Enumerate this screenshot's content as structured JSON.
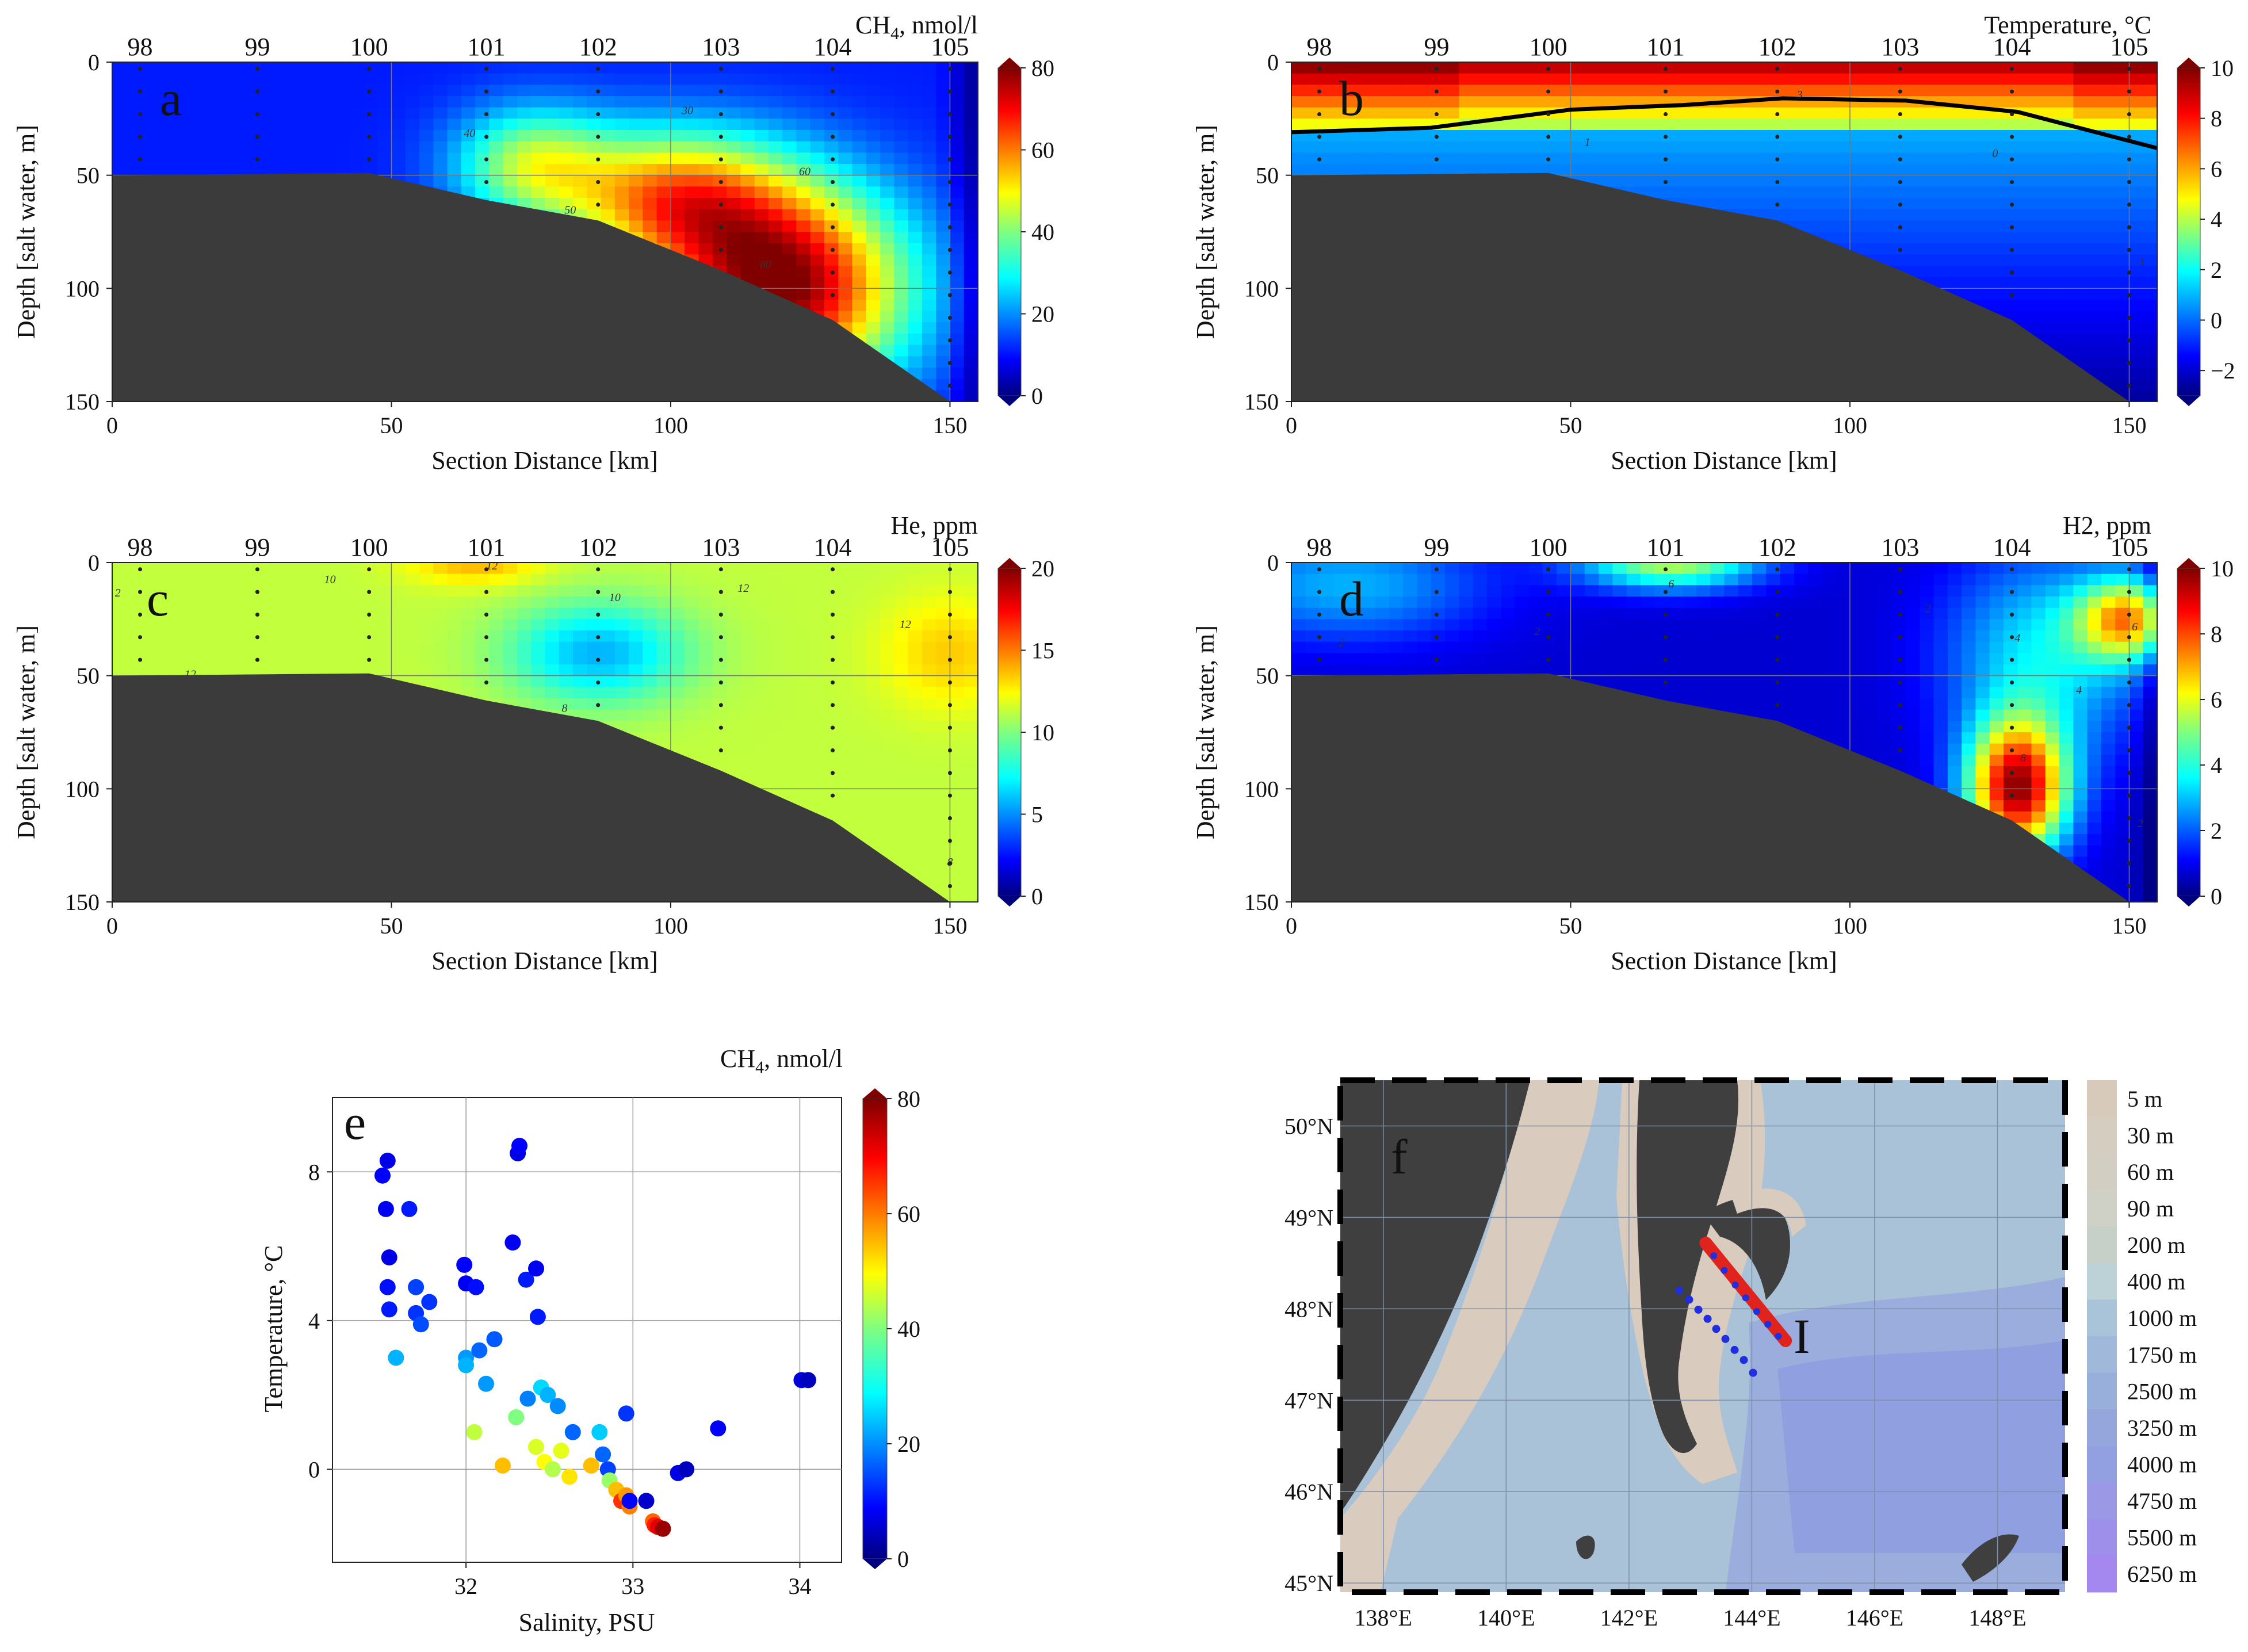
{
  "figure": "Hydrochemical sections and map",
  "colors": {
    "land": "#3f3f3f",
    "seabed": "#3b3b3b",
    "map_water_shallow": "#d9cbbd",
    "map_water_deep": "#8fa6d8",
    "track_red": "#e0231c",
    "track_blue": "#1f2fe0"
  },
  "chart_data": [
    {
      "id": "a",
      "type": "heatmap",
      "panel_label": "a",
      "title": "CH4, nmol/l",
      "title_base": "CH",
      "title_sub": "4",
      "title_rest": ", nmol/l",
      "xlabel": "Section Distance [km]",
      "ylabel": "Depth [salt water, m]",
      "xlim": [
        0,
        155
      ],
      "ylim": [
        150,
        0
      ],
      "x_ticks": [
        0,
        50,
        100,
        150
      ],
      "y_ticks": [
        0,
        50,
        100,
        150
      ],
      "colorbar": {
        "min": 0,
        "max": 80,
        "ticks": [
          0,
          20,
          40,
          60,
          80
        ],
        "colormap": "jet"
      },
      "stations": [
        {
          "name": "98",
          "km": 5
        },
        {
          "name": "99",
          "km": 26
        },
        {
          "name": "100",
          "km": 46
        },
        {
          "name": "101",
          "km": 67
        },
        {
          "name": "102",
          "km": 87
        },
        {
          "name": "103",
          "km": 109
        },
        {
          "name": "104",
          "km": 129
        },
        {
          "name": "105",
          "km": 150
        }
      ],
      "bottom_profile": [
        [
          0,
          50
        ],
        [
          46,
          49
        ],
        [
          67,
          61
        ],
        [
          87,
          70
        ],
        [
          109,
          92
        ],
        [
          129,
          114
        ],
        [
          150,
          150
        ]
      ],
      "sources": [
        {
          "km": 120,
          "depth": 100,
          "value": 80,
          "radius_km": 22,
          "radius_m": 45
        },
        {
          "km": 100,
          "depth": 60,
          "value": 55,
          "radius_km": 20,
          "radius_m": 30
        },
        {
          "km": 75,
          "depth": 45,
          "value": 42,
          "radius_km": 14,
          "radius_m": 25
        }
      ],
      "background": 12,
      "contours": [
        {
          "label": "30",
          "km": 103,
          "depth": 23
        },
        {
          "label": "40",
          "km": 64,
          "depth": 33
        },
        {
          "label": "50",
          "km": 82,
          "depth": 67
        },
        {
          "label": "60",
          "km": 124,
          "depth": 50
        },
        {
          "label": "80",
          "km": 117,
          "depth": 91
        }
      ]
    },
    {
      "id": "b",
      "type": "heatmap",
      "panel_label": "b",
      "title": "Temperature, °C",
      "xlabel": "Section Distance [km]",
      "ylabel": "Depth [salt water, m]",
      "xlim": [
        0,
        155
      ],
      "ylim": [
        150,
        0
      ],
      "x_ticks": [
        0,
        50,
        100,
        150
      ],
      "y_ticks": [
        0,
        50,
        100,
        150
      ],
      "colorbar": {
        "min": -3,
        "max": 10,
        "ticks": [
          -2,
          0,
          2,
          4,
          6,
          8,
          10
        ],
        "colormap": "jet"
      },
      "stations": [
        {
          "name": "98",
          "km": 5
        },
        {
          "name": "99",
          "km": 26
        },
        {
          "name": "100",
          "km": 46
        },
        {
          "name": "101",
          "km": 67
        },
        {
          "name": "102",
          "km": 87
        },
        {
          "name": "103",
          "km": 109
        },
        {
          "name": "104",
          "km": 129
        },
        {
          "name": "105",
          "km": 150
        }
      ],
      "bottom_profile": [
        [
          0,
          50
        ],
        [
          46,
          49
        ],
        [
          67,
          61
        ],
        [
          87,
          70
        ],
        [
          109,
          92
        ],
        [
          129,
          114
        ],
        [
          150,
          150
        ]
      ],
      "thermocline": [
        [
          0,
          31
        ],
        [
          25,
          29
        ],
        [
          50,
          21
        ],
        [
          70,
          19
        ],
        [
          88,
          16
        ],
        [
          110,
          17
        ],
        [
          130,
          22
        ],
        [
          155,
          38
        ]
      ],
      "contours": [
        {
          "label": "3",
          "km": 91,
          "depth": 16
        },
        {
          "label": "1",
          "km": 53,
          "depth": 37
        },
        {
          "label": "0",
          "km": 126,
          "depth": 42
        },
        {
          "label": "-1",
          "km": 152,
          "depth": 90
        }
      ]
    },
    {
      "id": "c",
      "type": "heatmap",
      "panel_label": "c",
      "title": "He, ppm",
      "xlabel": "Section Distance [km]",
      "ylabel": "Depth [salt water, m]",
      "xlim": [
        0,
        155
      ],
      "ylim": [
        150,
        0
      ],
      "x_ticks": [
        0,
        50,
        100,
        150
      ],
      "y_ticks": [
        0,
        50,
        100,
        150
      ],
      "colorbar": {
        "min": 0,
        "max": 20,
        "ticks": [
          0,
          5,
          10,
          15,
          20
        ],
        "colormap": "jet"
      },
      "stations": [
        {
          "name": "98",
          "km": 5
        },
        {
          "name": "99",
          "km": 26
        },
        {
          "name": "100",
          "km": 46
        },
        {
          "name": "101",
          "km": 67
        },
        {
          "name": "102",
          "km": 87
        },
        {
          "name": "103",
          "km": 109
        },
        {
          "name": "104",
          "km": 129
        },
        {
          "name": "105",
          "km": 150
        }
      ],
      "bottom_profile": [
        [
          0,
          50
        ],
        [
          46,
          49
        ],
        [
          67,
          61
        ],
        [
          87,
          70
        ],
        [
          109,
          92
        ],
        [
          129,
          114
        ],
        [
          150,
          150
        ]
      ],
      "sources": [
        {
          "km": 87,
          "depth": 40,
          "value": 6,
          "radius_km": 16,
          "radius_m": 22
        },
        {
          "km": 65,
          "depth": 0,
          "value": 14,
          "radius_km": 12,
          "radius_m": 10
        },
        {
          "km": 150,
          "depth": 40,
          "value": 13.5,
          "radius_km": 12,
          "radius_m": 25
        }
      ],
      "background": 11.3,
      "contours": [
        {
          "label": "10",
          "km": 39,
          "depth": 9
        },
        {
          "label": "12",
          "km": 68,
          "depth": 3
        },
        {
          "label": "10",
          "km": 90,
          "depth": 17
        },
        {
          "label": "12",
          "km": 113,
          "depth": 13
        },
        {
          "label": "12",
          "km": 142,
          "depth": 29
        },
        {
          "label": "8",
          "km": 81,
          "depth": 66
        },
        {
          "label": "2",
          "km": 1,
          "depth": 15
        },
        {
          "label": "12",
          "km": 14,
          "depth": 51
        },
        {
          "label": "8",
          "km": 150,
          "depth": 134
        }
      ]
    },
    {
      "id": "d",
      "type": "heatmap",
      "panel_label": "d",
      "title": "H2, ppm",
      "title_base": "H",
      "title_sub": "2",
      "title_rest": ", ppm",
      "xlabel": "Section Distance [km]",
      "ylabel": "Depth [salt water, m]",
      "xlim": [
        0,
        155
      ],
      "ylim": [
        150,
        0
      ],
      "x_ticks": [
        0,
        50,
        100,
        150
      ],
      "y_ticks": [
        0,
        50,
        100,
        150
      ],
      "colorbar": {
        "min": 0,
        "max": 10,
        "ticks": [
          0,
          2,
          4,
          6,
          8,
          10
        ],
        "colormap": "jet"
      },
      "stations": [
        {
          "name": "98",
          "km": 5
        },
        {
          "name": "99",
          "km": 26
        },
        {
          "name": "100",
          "km": 46
        },
        {
          "name": "101",
          "km": 67
        },
        {
          "name": "102",
          "km": 87
        },
        {
          "name": "103",
          "km": 109
        },
        {
          "name": "104",
          "km": 129
        },
        {
          "name": "105",
          "km": 150
        }
      ],
      "bottom_profile": [
        [
          0,
          50
        ],
        [
          46,
          49
        ],
        [
          67,
          61
        ],
        [
          87,
          70
        ],
        [
          109,
          92
        ],
        [
          129,
          114
        ],
        [
          150,
          150
        ]
      ],
      "sources": [
        {
          "km": 130,
          "depth": 100,
          "value": 9.5,
          "radius_km": 9,
          "radius_m": 30
        },
        {
          "km": 68,
          "depth": 0,
          "value": 5.5,
          "radius_km": 16,
          "radius_m": 12
        },
        {
          "km": 150,
          "depth": 25,
          "value": 6.5,
          "radius_km": 9,
          "radius_m": 18
        },
        {
          "km": 10,
          "depth": 10,
          "value": 3,
          "radius_km": 25,
          "radius_m": 25
        },
        {
          "km": 135,
          "depth": 40,
          "value": 3.6,
          "radius_km": 18,
          "radius_m": 45
        }
      ],
      "background": 0.8,
      "contours": [
        {
          "label": "6",
          "km": 68,
          "depth": 11
        },
        {
          "label": "2",
          "km": 44,
          "depth": 32
        },
        {
          "label": "2",
          "km": 9,
          "depth": 37
        },
        {
          "label": "2",
          "km": 114,
          "depth": 22
        },
        {
          "label": "4",
          "km": 130,
          "depth": 35
        },
        {
          "label": "4",
          "km": 141,
          "depth": 58
        },
        {
          "label": "6",
          "km": 151,
          "depth": 30
        },
        {
          "label": "8",
          "km": 131,
          "depth": 88
        },
        {
          "label": "2",
          "km": 152,
          "depth": 117
        }
      ]
    },
    {
      "id": "e",
      "type": "scatter",
      "panel_label": "e",
      "title": "CH4, nmol/l",
      "title_base": "CH",
      "title_sub": "4",
      "title_rest": ", nmol/l",
      "xlabel": "Salinity, PSU",
      "ylabel": "Temperature, °C",
      "xlim": [
        31.2,
        34.25
      ],
      "ylim": [
        -2.5,
        10
      ],
      "x_ticks": [
        32,
        33,
        34
      ],
      "y_ticks": [
        0,
        4,
        8
      ],
      "colorbar": {
        "min": 0,
        "max": 80,
        "ticks": [
          0,
          20,
          40,
          60,
          80
        ],
        "colormap": "jet"
      },
      "points": [
        [
          31.5,
          7.9,
          10
        ],
        [
          31.53,
          8.3,
          8
        ],
        [
          31.52,
          7.0,
          9
        ],
        [
          31.54,
          5.7,
          8
        ],
        [
          31.53,
          4.9,
          11
        ],
        [
          31.54,
          4.3,
          12
        ],
        [
          31.58,
          3.0,
          24
        ],
        [
          31.66,
          7.0,
          12
        ],
        [
          31.7,
          4.9,
          15
        ],
        [
          31.7,
          4.2,
          14
        ],
        [
          31.73,
          3.9,
          16
        ],
        [
          31.78,
          4.5,
          14
        ],
        [
          31.99,
          5.5,
          10
        ],
        [
          32.0,
          5.0,
          9
        ],
        [
          32.0,
          3.0,
          22
        ],
        [
          32.0,
          2.8,
          24
        ],
        [
          32.06,
          4.9,
          11
        ],
        [
          32.08,
          3.2,
          18
        ],
        [
          32.12,
          2.3,
          22
        ],
        [
          32.17,
          3.5,
          17
        ],
        [
          32.28,
          6.1,
          9
        ],
        [
          32.31,
          8.5,
          8
        ],
        [
          32.32,
          8.7,
          10
        ],
        [
          32.36,
          5.1,
          12
        ],
        [
          32.42,
          5.4,
          9
        ],
        [
          32.43,
          4.1,
          12
        ],
        [
          32.05,
          1.0,
          45
        ],
        [
          32.22,
          0.1,
          55
        ],
        [
          32.3,
          1.4,
          40
        ],
        [
          32.37,
          1.9,
          20
        ],
        [
          32.45,
          2.2,
          27
        ],
        [
          32.49,
          2.0,
          24
        ],
        [
          32.55,
          1.7,
          21
        ],
        [
          32.42,
          0.6,
          47
        ],
        [
          32.47,
          0.2,
          50
        ],
        [
          32.52,
          0.0,
          44
        ],
        [
          32.57,
          0.5,
          48
        ],
        [
          32.62,
          -0.2,
          52
        ],
        [
          32.64,
          1.0,
          18
        ],
        [
          32.75,
          0.1,
          55
        ],
        [
          32.8,
          1.0,
          26
        ],
        [
          32.82,
          0.4,
          18
        ],
        [
          32.85,
          0.0,
          15
        ],
        [
          32.86,
          -0.3,
          42
        ],
        [
          32.9,
          -0.55,
          55
        ],
        [
          32.93,
          -0.85,
          66
        ],
        [
          32.96,
          -0.7,
          58
        ],
        [
          32.98,
          -1.0,
          60
        ],
        [
          32.96,
          1.5,
          14
        ],
        [
          32.98,
          -0.85,
          10
        ],
        [
          33.08,
          -0.85,
          6
        ],
        [
          33.12,
          -1.4,
          62
        ],
        [
          33.13,
          -1.5,
          68
        ],
        [
          33.15,
          -1.55,
          72
        ],
        [
          33.18,
          -1.6,
          78
        ],
        [
          33.27,
          -0.1,
          8
        ],
        [
          33.32,
          0.0,
          5
        ],
        [
          33.51,
          1.1,
          10
        ],
        [
          34.01,
          2.4,
          7
        ],
        [
          34.05,
          2.4,
          5
        ]
      ]
    }
  ],
  "map": {
    "panel_label": "f",
    "x_labels": [
      "138°E",
      "140°E",
      "142°E",
      "144°E",
      "146°E",
      "148°E"
    ],
    "y_labels": [
      "50°N",
      "49°N",
      "48°N",
      "47°N",
      "46°N",
      "45°N"
    ],
    "track_label": "I",
    "legend": [
      "5 m",
      "30 m",
      "60 m",
      "90 m",
      "200 m",
      "400 m",
      "1000 m",
      "1750 m",
      "2500 m",
      "3250 m",
      "4000 m",
      "4750 m",
      "5500 m",
      "6250 m"
    ],
    "legend_colors": [
      "#d8cabb",
      "#d5cdbf",
      "#d2cfc2",
      "#cfd1c6",
      "#c6d0c9",
      "#bcd2d6",
      "#a9c4d8",
      "#a0b8da",
      "#98aedb",
      "#95a6dd",
      "#929fe0",
      "#9b98e6",
      "#9e8fea",
      "#a488f0"
    ],
    "red_track": [
      [
        143.25,
        48.72
      ],
      [
        144.55,
        47.65
      ]
    ],
    "blue_points": [
      [
        143.38,
        48.58
      ],
      [
        143.55,
        48.42
      ],
      [
        143.73,
        48.26
      ],
      [
        143.9,
        48.12
      ],
      [
        144.08,
        47.97
      ],
      [
        144.26,
        47.83
      ],
      [
        144.43,
        47.7
      ]
    ],
    "blue_track_2": [
      [
        142.82,
        48.2
      ],
      [
        142.98,
        48.1
      ],
      [
        143.13,
        47.99
      ],
      [
        143.28,
        47.89
      ],
      [
        143.42,
        47.78
      ],
      [
        143.57,
        47.67
      ],
      [
        143.72,
        47.55
      ],
      [
        143.87,
        47.44
      ],
      [
        144.02,
        47.3
      ]
    ]
  }
}
